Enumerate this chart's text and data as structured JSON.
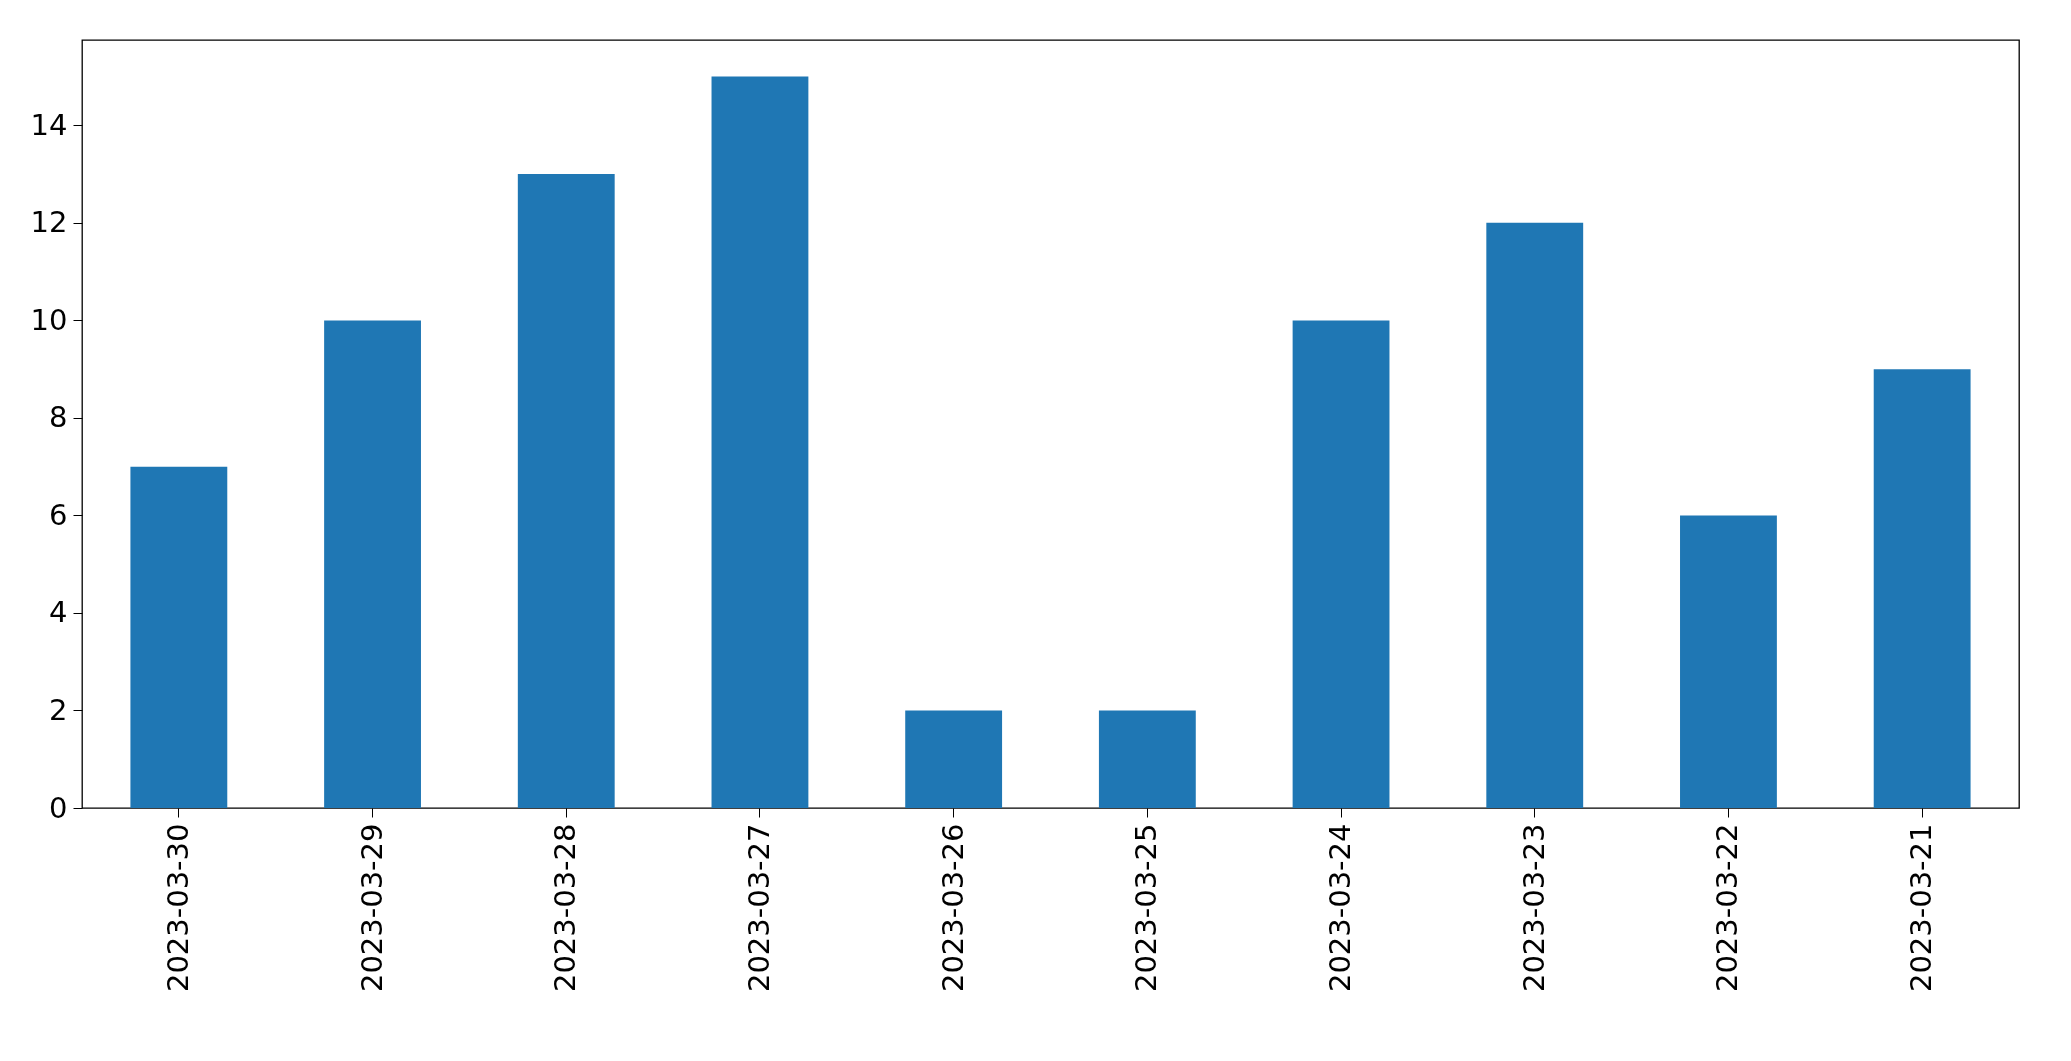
{
  "chart_data": {
    "type": "bar",
    "categories": [
      "2023-03-30",
      "2023-03-29",
      "2023-03-28",
      "2023-03-27",
      "2023-03-26",
      "2023-03-25",
      "2023-03-24",
      "2023-03-23",
      "2023-03-22",
      "2023-03-21"
    ],
    "values": [
      7,
      10,
      13,
      15,
      2,
      2,
      10,
      12,
      6,
      9
    ],
    "color": "#1f77b4",
    "ylim": [
      0,
      15.75
    ],
    "yticks": [
      0,
      2,
      4,
      6,
      8,
      10,
      12,
      14
    ],
    "grid": false
  }
}
